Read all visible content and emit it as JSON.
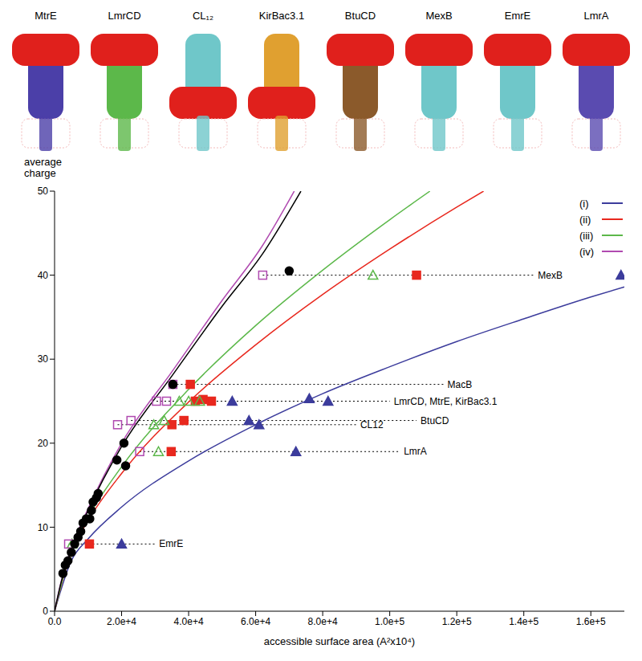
{
  "chart_data": {
    "type": "scatter",
    "x_label": "accessible surface area  (A²x10⁴)",
    "y_label": "average charge",
    "xlim": [
      0,
      170000
    ],
    "xticks": [
      {
        "value": 0,
        "label": "0.0"
      },
      {
        "value": 20000,
        "label": "2.0e+4"
      },
      {
        "value": 40000,
        "label": "4.0e+4"
      },
      {
        "value": 60000,
        "label": "6.0e+4"
      },
      {
        "value": 80000,
        "label": "8.0e+4"
      },
      {
        "value": 100000,
        "label": "1.0e+5"
      },
      {
        "value": 120000,
        "label": "1.2e+5"
      },
      {
        "value": 140000,
        "label": "1.4e+5"
      },
      {
        "value": 160000,
        "label": "1.6e+5"
      }
    ],
    "ylim": [
      0,
      50
    ],
    "yticks": [
      0,
      10,
      20,
      30,
      40,
      50
    ],
    "grid": false,
    "legend": "top right",
    "series": [
      {
        "name": "(i)",
        "color": "#3c3c9c",
        "marker": "triangle",
        "x": [
          20000,
          72000,
          61000,
          58000,
          53000,
          76000,
          81600,
          169000
        ],
        "y": [
          8,
          19,
          22.2,
          22.7,
          25,
          25.3,
          25,
          40
        ],
        "curve_x": [
          0,
          5000,
          10000,
          20000,
          40000,
          60000,
          80000,
          100000,
          120000,
          140000,
          160000,
          170000
        ],
        "curve_y": [
          0,
          6.0,
          8.6,
          12.4,
          17.9,
          22.2,
          25.9,
          29.1,
          32.1,
          34.8,
          37.4,
          38.6
        ]
      },
      {
        "name": "(ii)",
        "color": "#e8281e",
        "marker": "square",
        "x": [
          10400,
          34800,
          35000,
          38600,
          42000,
          44300,
          46800,
          40500,
          108000
        ],
        "y": [
          8,
          19,
          22.2,
          22.7,
          25,
          25.2,
          25,
          27,
          40
        ],
        "curve_x": [
          0,
          5000,
          10000,
          20000,
          40000,
          60000,
          80000,
          100000,
          120000,
          128000
        ],
        "curve_y": [
          0,
          7.1,
          10.8,
          16.4,
          24.9,
          31.7,
          37.7,
          43.1,
          48.1,
          50
        ]
      },
      {
        "name": "(iii)",
        "color": "#5cb84a",
        "marker": "triangle-open",
        "x": [
          5200,
          31000,
          29600,
          32700,
          37200,
          40000,
          43300,
          95000
        ],
        "y": [
          8,
          19,
          22.2,
          22.7,
          25,
          25,
          25,
          40
        ],
        "curve_x": [
          0,
          5000,
          10000,
          20000,
          40000,
          60000,
          80000,
          100000,
          112000
        ],
        "curve_y": [
          0,
          7.3,
          11.2,
          17.2,
          26.4,
          34.0,
          40.6,
          46.6,
          50
        ]
      },
      {
        "name": "(iv)",
        "color": "#b04ab0",
        "marker": "square-open",
        "x": [
          4200,
          25400,
          18800,
          22800,
          30400,
          33400,
          35300,
          62100
        ],
        "y": [
          8,
          19,
          22.2,
          22.7,
          25,
          25,
          27,
          40
        ],
        "curve_x": [
          0,
          2000,
          5000,
          10000,
          20000,
          35000,
          50000,
          62000,
          71500
        ],
        "curve_y": [
          0,
          3.6,
          7.5,
          12.2,
          20,
          28.5,
          37,
          43.5,
          50
        ]
      },
      {
        "color": "#000000",
        "marker": "circle",
        "x": [
          2500,
          3200,
          4000,
          5000,
          6000,
          7000,
          7800,
          8500,
          9500,
          10500,
          11000,
          11500,
          12500,
          13000,
          18600,
          20700,
          21200,
          35300,
          70000
        ],
        "y": [
          4.5,
          5.5,
          6,
          7,
          8,
          8.8,
          9.5,
          10.5,
          11,
          11,
          12,
          13,
          13.5,
          14,
          18,
          20,
          17.3,
          27,
          40.5
        ],
        "curve_x": [
          0,
          2000,
          5000,
          10000,
          20000,
          35000,
          50000,
          62000,
          73500
        ],
        "curve_y": [
          0,
          3.5,
          7.3,
          12,
          19.6,
          28,
          36.3,
          42.5,
          50
        ]
      }
    ],
    "annotations": [
      {
        "text": "MexB",
        "y": 40,
        "x": [
          62100,
          143000
        ]
      },
      {
        "text": "MacB",
        "y": 27,
        "x": [
          35300,
          116000
        ]
      },
      {
        "text": "LmrCD, MtrE, KirBac3.1",
        "y": 25,
        "x": [
          30400,
          100000
        ]
      },
      {
        "text": "BtuCD",
        "y": 22.7,
        "x": [
          22800,
          108000
        ]
      },
      {
        "text": "CL12",
        "y": 22.2,
        "x": [
          18800,
          90000
        ]
      },
      {
        "text": "LmrA",
        "y": 19,
        "x": [
          25400,
          103000
        ]
      },
      {
        "text": "EmrE",
        "y": 8,
        "x": [
          4200,
          30000
        ]
      }
    ]
  },
  "structures": {
    "labels": [
      "MtrE",
      "LmrCD",
      "CL₁₂",
      "KirBac3.1",
      "BtuCD",
      "MexB",
      "EmrE",
      "LmrA"
    ]
  }
}
